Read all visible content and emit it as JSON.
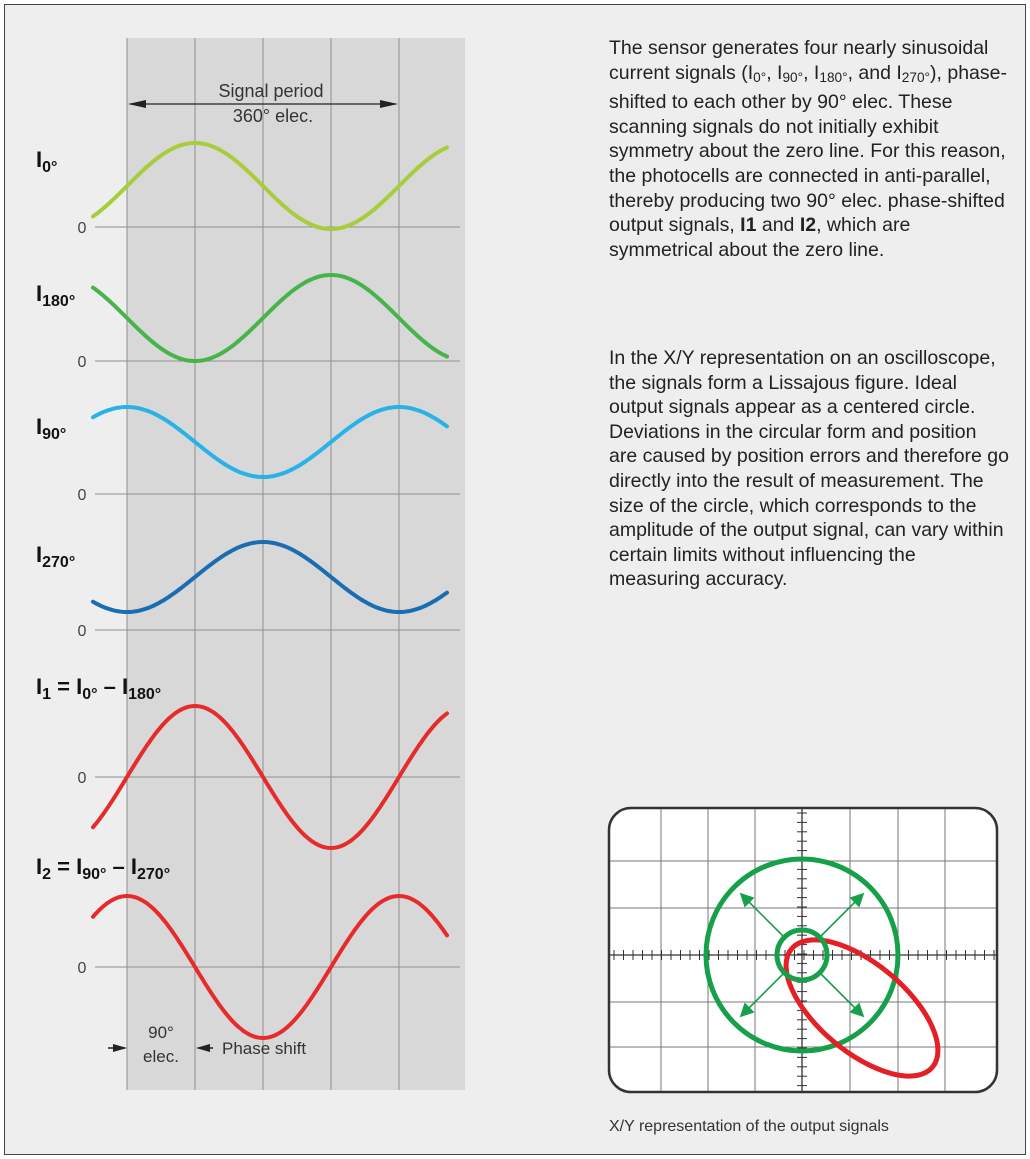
{
  "diagram": {
    "period_label_1": "Signal period",
    "period_label_2": "360° elec.",
    "phase_label_1": "90°",
    "phase_label_2": "elec.",
    "phase_shift_label": "Phase shift",
    "zero_label": "0",
    "signals": [
      {
        "id": "i0",
        "label_main": "I",
        "label_sub": "0°",
        "color": "#a8cc3c"
      },
      {
        "id": "i180",
        "label_main": "I",
        "label_sub": "180°",
        "color": "#47b44a"
      },
      {
        "id": "i90",
        "label_main": "I",
        "label_sub": "90°",
        "color": "#29b2e7"
      },
      {
        "id": "i270",
        "label_main": "I",
        "label_sub": "270°",
        "color": "#1a6db3"
      },
      {
        "id": "i1",
        "label_main": "I",
        "label_sub": "1",
        "label_eq": " = I",
        "label_eq_sub1": "0°",
        "label_minus": " – I",
        "label_eq_sub2": "180°",
        "color": "#e62b2b"
      },
      {
        "id": "i2",
        "label_main": "I",
        "label_sub": "2",
        "label_eq": " = I",
        "label_eq_sub1": "90°",
        "label_minus": " – I",
        "label_eq_sub2": "270°",
        "color": "#e62b2b"
      }
    ]
  },
  "text": {
    "p1_a": "The sensor generates four nearly sinusoidal current signals (I",
    "p1_s1": "0°",
    "p1_b": ", I",
    "p1_s2": "90°",
    "p1_c": ", I",
    "p1_s3": "180°",
    "p1_d": ", and I",
    "p1_s4": "270°",
    "p1_e": "), phase-shifted to each other by 90° elec. These scanning signals do not initially exhibit symmetry about the zero line. For this reason, the photocells are connected in anti-parallel, thereby producing two 90° elec. phase-shifted output signals, ",
    "p1_bold1": "I1",
    "p1_f": " and ",
    "p1_bold2": "I2",
    "p1_g": ", which are symmetrical about the zero line.",
    "p2": "In the X/Y representation on an oscilloscope, the signals form a Lissajous figure. Ideal output signals appear as a centered circle. Deviations in the circular form and position are caused by position errors and therefore go directly into the result of measure­ment. The size of the circle, which corresponds to the amplitude of the output signal, can vary within certain limits without influencing the measuring accuracy.",
    "caption": "X/Y representation of the output signals"
  },
  "colors": {
    "band": "#d8d8d8",
    "grid": "#9a9a9a",
    "circle": "#16a04a",
    "ellipse": "#e41f25",
    "scope_bg": "#ffffff"
  }
}
